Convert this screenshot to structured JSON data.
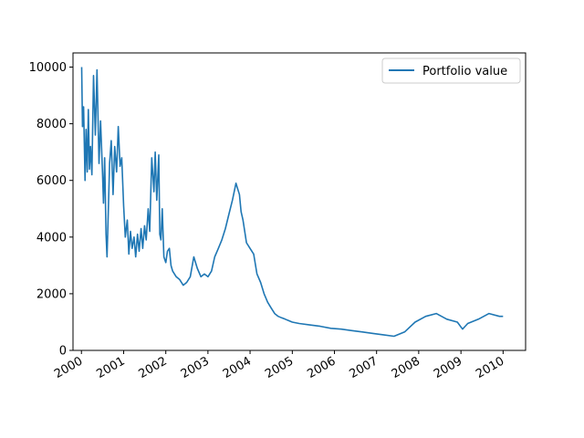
{
  "chart_data": {
    "type": "line",
    "title": "",
    "xlabel": "",
    "ylabel": "",
    "xlim": [
      "1999-10-20",
      "2010-07-15"
    ],
    "ylim": [
      0,
      10500
    ],
    "grid": false,
    "legend": {
      "placement": "top-right",
      "entries": [
        "Portfolio value"
      ]
    },
    "x_tick_labels": [
      "2000",
      "2001",
      "2002",
      "2003",
      "2004",
      "2005",
      "2006",
      "2007",
      "2008",
      "2009",
      "2010"
    ],
    "y_ticks": [
      0,
      2000,
      4000,
      6000,
      8000,
      10000
    ],
    "y_tick_labels": [
      "0",
      "2000",
      "4000",
      "6000",
      "8000",
      "10000"
    ],
    "series": [
      {
        "name": "Portfolio value",
        "color": "#1f77b4",
        "x": [
          "2000-01-03",
          "2000-01-10",
          "2000-01-20",
          "2000-02-01",
          "2000-02-10",
          "2000-02-20",
          "2000-03-01",
          "2000-03-10",
          "2000-03-20",
          "2000-04-01",
          "2000-04-15",
          "2000-05-01",
          "2000-05-15",
          "2000-06-01",
          "2000-06-15",
          "2000-07-01",
          "2000-07-10",
          "2000-07-20",
          "2000-08-01",
          "2000-08-10",
          "2000-08-20",
          "2000-09-01",
          "2000-09-15",
          "2000-10-01",
          "2000-10-15",
          "2000-11-01",
          "2000-11-15",
          "2000-12-01",
          "2000-12-15",
          "2001-01-01",
          "2001-01-15",
          "2001-02-01",
          "2001-02-15",
          "2001-03-01",
          "2001-03-15",
          "2001-04-01",
          "2001-04-15",
          "2001-05-01",
          "2001-05-15",
          "2001-06-01",
          "2001-06-15",
          "2001-07-01",
          "2001-07-15",
          "2001-08-01",
          "2001-08-15",
          "2001-09-01",
          "2001-09-20",
          "2001-10-01",
          "2001-10-15",
          "2001-11-01",
          "2001-11-10",
          "2001-11-20",
          "2001-12-01",
          "2001-12-15",
          "2002-01-01",
          "2002-01-15",
          "2002-02-01",
          "2002-02-15",
          "2002-03-01",
          "2002-04-01",
          "2002-05-01",
          "2002-06-01",
          "2002-07-01",
          "2002-08-01",
          "2002-09-01",
          "2002-10-01",
          "2002-11-01",
          "2002-12-01",
          "2003-01-01",
          "2003-02-01",
          "2003-03-01",
          "2003-04-01",
          "2003-05-01",
          "2003-06-01",
          "2003-07-01",
          "2003-08-01",
          "2003-09-01",
          "2003-10-01",
          "2003-10-15",
          "2003-11-01",
          "2003-12-01",
          "2004-01-01",
          "2004-02-01",
          "2004-03-01",
          "2004-04-01",
          "2004-05-01",
          "2004-06-01",
          "2004-07-01",
          "2004-08-01",
          "2004-09-01",
          "2004-10-01",
          "2004-11-01",
          "2004-12-01",
          "2005-01-01",
          "2005-03-01",
          "2005-06-01",
          "2005-09-01",
          "2005-12-01",
          "2006-03-01",
          "2006-06-01",
          "2006-09-01",
          "2006-12-01",
          "2007-03-01",
          "2007-06-01",
          "2007-09-01",
          "2007-12-01",
          "2008-03-01",
          "2008-06-01",
          "2008-09-01",
          "2008-12-01",
          "2009-01-15",
          "2009-03-01",
          "2009-06-01",
          "2009-09-01",
          "2009-12-01",
          "2010-01-01"
        ],
        "values": [
          10000,
          7900,
          8600,
          6000,
          7800,
          6300,
          8500,
          6400,
          7200,
          6200,
          9700,
          7600,
          9900,
          6600,
          8100,
          6300,
          5200,
          6800,
          4100,
          3300,
          4800,
          6600,
          7400,
          5500,
          7200,
          6300,
          7900,
          6500,
          6800,
          5100,
          4000,
          4600,
          3400,
          4200,
          3600,
          4000,
          3300,
          4100,
          3500,
          4300,
          3600,
          4400,
          3900,
          5000,
          4200,
          6800,
          5600,
          7000,
          5300,
          6900,
          4100,
          3900,
          5000,
          3300,
          3100,
          3500,
          3600,
          3000,
          2800,
          2600,
          2500,
          2300,
          2400,
          2600,
          3300,
          2900,
          2600,
          2700,
          2600,
          2800,
          3300,
          3600,
          3900,
          4300,
          4800,
          5300,
          5900,
          5500,
          4900,
          4600,
          3800,
          3600,
          3400,
          2700,
          2400,
          2000,
          1700,
          1500,
          1300,
          1200,
          1150,
          1100,
          1050,
          1000,
          950,
          900,
          850,
          780,
          750,
          700,
          650,
          600,
          550,
          500,
          650,
          1000,
          1200,
          1300,
          1100,
          1000,
          750,
          950,
          1100,
          1300,
          1200,
          1200
        ]
      }
    ]
  }
}
